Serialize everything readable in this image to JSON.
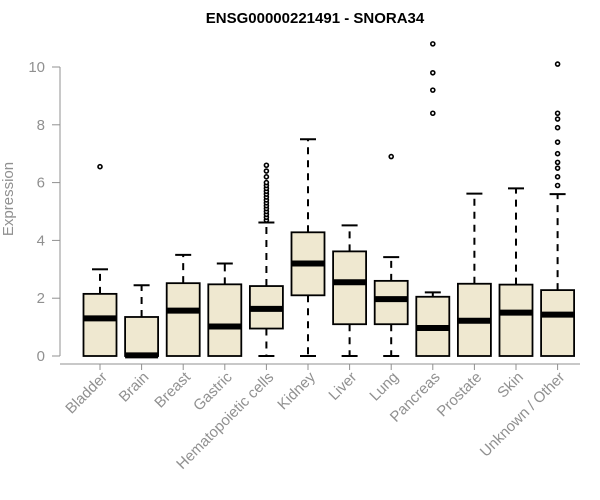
{
  "chart_data": {
    "type": "boxplot",
    "title": "ENSG00000221491 - SNORA34",
    "ylabel": "Expression",
    "xlabel": "",
    "ylim": [
      0,
      10
    ],
    "yticks": [
      0,
      2,
      4,
      6,
      8,
      10
    ],
    "grid": false,
    "legend": "none",
    "colors": {
      "box_fill": "#EFE8D0",
      "stroke": "#000000",
      "axis": "#909090",
      "label": "#909090"
    },
    "categories": [
      "Bladder",
      "Brain",
      "Breast",
      "Gastric",
      "Hematopoietic cells",
      "Kidney",
      "Liver",
      "Lung",
      "Pancreas",
      "Prostate",
      "Skin",
      "Unknown / Other"
    ],
    "boxes": [
      {
        "category": "Bladder",
        "whisker_low": 0,
        "q1": 0,
        "median": 1.3,
        "q3": 2.15,
        "whisker_high": 3.0,
        "outliers": [
          6.55
        ]
      },
      {
        "category": "Brain",
        "whisker_low": 0,
        "q1": 0,
        "median": 0.02,
        "q3": 1.35,
        "whisker_high": 2.45,
        "outliers": []
      },
      {
        "category": "Breast",
        "whisker_low": 0,
        "q1": 0,
        "median": 1.57,
        "q3": 2.52,
        "whisker_high": 3.5,
        "outliers": []
      },
      {
        "category": "Gastric",
        "whisker_low": 0,
        "q1": 0,
        "median": 1.02,
        "q3": 2.48,
        "whisker_high": 3.2,
        "outliers": []
      },
      {
        "category": "Hematopoietic cells",
        "whisker_low": 0,
        "q1": 0.95,
        "median": 1.63,
        "q3": 2.42,
        "whisker_high": 4.62,
        "outliers": [
          4.7,
          4.8,
          4.9,
          5.0,
          5.1,
          5.2,
          5.3,
          5.4,
          5.5,
          5.6,
          5.7,
          5.8,
          5.9,
          6.0,
          6.2,
          6.4,
          6.6
        ]
      },
      {
        "category": "Kidney",
        "whisker_low": 0,
        "q1": 2.1,
        "median": 3.2,
        "q3": 4.28,
        "whisker_high": 7.5,
        "outliers": []
      },
      {
        "category": "Liver",
        "whisker_low": 0,
        "q1": 1.1,
        "median": 2.55,
        "q3": 3.62,
        "whisker_high": 4.52,
        "outliers": []
      },
      {
        "category": "Lung",
        "whisker_low": 0,
        "q1": 1.1,
        "median": 1.97,
        "q3": 2.6,
        "whisker_high": 3.42,
        "outliers": [
          6.9
        ]
      },
      {
        "category": "Pancreas",
        "whisker_low": 0,
        "q1": 0,
        "median": 0.97,
        "q3": 2.05,
        "whisker_high": 2.2,
        "outliers": [
          8.4,
          9.2,
          9.8,
          10.8
        ]
      },
      {
        "category": "Prostate",
        "whisker_low": 0,
        "q1": 0,
        "median": 1.22,
        "q3": 2.5,
        "whisker_high": 5.62,
        "outliers": []
      },
      {
        "category": "Skin",
        "whisker_low": 0,
        "q1": 0,
        "median": 1.5,
        "q3": 2.47,
        "whisker_high": 5.8,
        "outliers": []
      },
      {
        "category": "Unknown / Other",
        "whisker_low": 0,
        "q1": 0,
        "median": 1.43,
        "q3": 2.28,
        "whisker_high": 5.6,
        "outliers": [
          5.9,
          6.2,
          6.5,
          6.7,
          7.0,
          7.4,
          7.9,
          8.2,
          8.4,
          10.1
        ]
      }
    ]
  }
}
